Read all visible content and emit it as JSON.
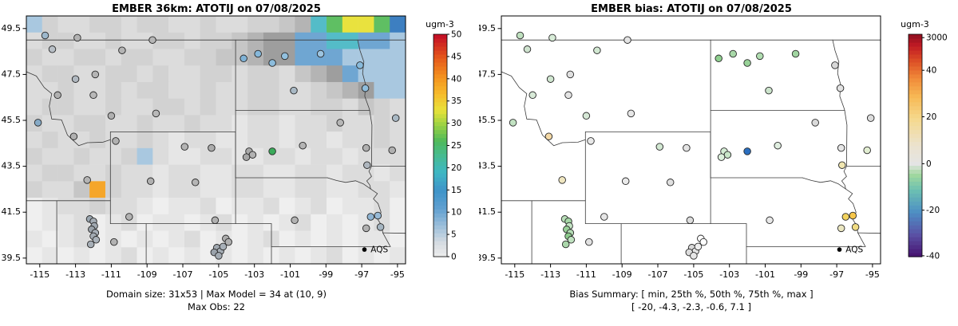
{
  "chart_data": [
    {
      "type": "heatmap",
      "title": "EMBER 36km: ATOTIJ on 07/08/2025",
      "caption1": "Domain size: 31x53 | Max Model = 34 at (10, 9)",
      "caption2": "Max Obs: 22",
      "legend_label": "AQS",
      "legend_position": "bottom-right-inside",
      "x_ticks": [
        -115,
        -113,
        -111,
        -109,
        -107,
        -105,
        -103,
        -101,
        -99,
        -97,
        -95
      ],
      "y_ticks": [
        39.5,
        41.5,
        43.5,
        45.5,
        47.5,
        49.5
      ],
      "lon_range": [
        -115.75,
        -94.55
      ],
      "lat_range": [
        39.25,
        50.05
      ],
      "grid": false,
      "stations_color_key": "c1",
      "colorbar": {
        "label": "ugm-3",
        "ticks": [
          0,
          5,
          10,
          15,
          20,
          25,
          30,
          35,
          40,
          45,
          50
        ],
        "tick_max": 50,
        "stops_bottom_to_top": [
          {
            "f": 0.0,
            "c": "#ededed"
          },
          {
            "f": 0.06,
            "c": "#d8dde2"
          },
          {
            "f": 0.13,
            "c": "#a3c3dc"
          },
          {
            "f": 0.22,
            "c": "#5f9fd0"
          },
          {
            "f": 0.3,
            "c": "#3f94c9"
          },
          {
            "f": 0.38,
            "c": "#3fb7c4"
          },
          {
            "f": 0.46,
            "c": "#47bb8e"
          },
          {
            "f": 0.52,
            "c": "#4eb95a"
          },
          {
            "f": 0.6,
            "c": "#a2d442"
          },
          {
            "f": 0.66,
            "c": "#e9e23a"
          },
          {
            "f": 0.73,
            "c": "#f6bd2c"
          },
          {
            "f": 0.81,
            "c": "#f3921f"
          },
          {
            "f": 0.9,
            "c": "#e4551b"
          },
          {
            "f": 1.0,
            "c": "#c20b26"
          }
        ]
      },
      "raster": {
        "palette": {
          ".": "#efefef",
          "a": "#e6e6e6",
          "b": "#dcdcdc",
          "c": "#d2d2d2",
          "d": "#c6c6c6",
          "e": "#b4b4b4",
          "f": "#9e9e9e",
          "B": "#a9c8e0",
          "C": "#6fa6d2",
          "D": "#3d7fc1",
          "T": "#54bcc8",
          "G": "#5fbf63",
          "Y": "#e9e23e",
          "O": "#f5a62a"
        },
        "rows": [
          "BcbbccbccbbcbbccdeTGYYGD",
          "bccbbcbbccbccdeffCCTTCCB",
          "cbbccbccbbccddeffCCCBBBB",
          "bccbbccbcbbccbccbdefCBBB",
          "bbcbbcbccbbcbbccbbcdefBB",
          "bccbbcbbccbcbbccbbccbdcb",
          "cbbccbbcbbcbbabbabbcbbcb",
          "bcbbcbbcbabbaabbabbabbcb",
          "cbbcbbcBbaabbaabbabbabbb",
          "bccbbcbbabbaabbaabbabbab",
          "cbbdOcbbabbaabbaabbaabba",
          ".abbcbba.aab.aab.ab.aab.",
          ".aab.ab.aa.ab.a.ab.a.ab.",
          "a.ab.a.a.ab.a.ab.a.a.aa.",
          ".a.a.ab.a.a.a.a.a.ab.a.a"
        ]
      }
    },
    {
      "type": "scatter",
      "title": "EMBER bias: ATOTIJ on 07/08/2025",
      "caption1": "Bias Summary: [ min, 25th %, 50th %, 75th %, max ]",
      "caption2": "[ -20,  -4.3,  -2.3,  -0.6,  7.1 ]",
      "legend_label": "AQS",
      "legend_position": "bottom-right-inside",
      "x_ticks": [
        -115,
        -113,
        -111,
        -109,
        -107,
        -105,
        -103,
        -101,
        -99,
        -97,
        -95
      ],
      "y_ticks": [
        39.5,
        41.5,
        43.5,
        45.5,
        47.5,
        49.5
      ],
      "lon_range": [
        -115.75,
        -94.55
      ],
      "lat_range": [
        39.25,
        50.05
      ],
      "grid": false,
      "stations_color_key": "c2",
      "colorbar": {
        "label": "ugm-3",
        "ticks": [
          {
            "label": "3000",
            "f": 0.985
          },
          {
            "label": "40",
            "f": 0.838
          },
          {
            "label": "20",
            "f": 0.629
          },
          {
            "label": "0",
            "f": 0.418
          },
          {
            "label": "-20",
            "f": 0.209
          },
          {
            "label": "-40",
            "f": 0.004
          }
        ],
        "stops_bottom_to_top": [
          {
            "f": 0.0,
            "c": "#46106e"
          },
          {
            "f": 0.1,
            "c": "#5a51a5"
          },
          {
            "f": 0.2,
            "c": "#4d8ec4"
          },
          {
            "f": 0.3,
            "c": "#6cc0b2"
          },
          {
            "f": 0.37,
            "c": "#a2d89e"
          },
          {
            "f": 0.42,
            "c": "#e4e4e4"
          },
          {
            "f": 0.5,
            "c": "#ebe3cf"
          },
          {
            "f": 0.62,
            "c": "#f5d98e"
          },
          {
            "f": 0.72,
            "c": "#f7b955"
          },
          {
            "f": 0.8,
            "c": "#f18c3a"
          },
          {
            "f": 0.88,
            "c": "#dd5026"
          },
          {
            "f": 0.95,
            "c": "#c01a24"
          },
          {
            "f": 1.0,
            "c": "#8f0f20"
          }
        ]
      }
    }
  ],
  "stations": [
    {
      "lon": -114.7,
      "lat": 49.2,
      "c1": "#9db8cc",
      "c2": "#bfe0bf"
    },
    {
      "lon": -112.9,
      "lat": 49.1,
      "c1": "#b2b2b2",
      "c2": "#d8ecd8"
    },
    {
      "lon": -108.7,
      "lat": 49.0,
      "c1": "#b6b6b6",
      "c2": "#e4e4e4"
    },
    {
      "lon": -114.3,
      "lat": 48.6,
      "c1": "#b8bfc6",
      "c2": "#cfe3cf"
    },
    {
      "lon": -110.4,
      "lat": 48.55,
      "c1": "#b4b4b4",
      "c2": "#d2e8d2"
    },
    {
      "lon": -113.0,
      "lat": 47.3,
      "c1": "#b0b8c0",
      "c2": "#d0e6d0"
    },
    {
      "lon": -111.9,
      "lat": 47.5,
      "c1": "#b5b5b5",
      "c2": "#e0e0e0"
    },
    {
      "lon": -114.0,
      "lat": 46.6,
      "c1": "#b0b0b0",
      "c2": "#d8ead8"
    },
    {
      "lon": -112.0,
      "lat": 46.6,
      "c1": "#b8b8b8",
      "c2": "#e4e4e4"
    },
    {
      "lon": -111.0,
      "lat": 45.7,
      "c1": "#b0b0b0",
      "c2": "#d6e8d6"
    },
    {
      "lon": -108.5,
      "lat": 45.8,
      "c1": "#b8b8b8",
      "c2": "#e6e6e6"
    },
    {
      "lon": -103.6,
      "lat": 48.2,
      "c1": "#7fb2d6",
      "c2": "#8fcf8f"
    },
    {
      "lon": -102.8,
      "lat": 48.4,
      "c1": "#86b8da",
      "c2": "#a8d8a8"
    },
    {
      "lon": -102.0,
      "lat": 48.0,
      "c1": "#8cbcdc",
      "c2": "#98d298"
    },
    {
      "lon": -101.3,
      "lat": 48.3,
      "c1": "#92c0de",
      "c2": "#b0dcb0"
    },
    {
      "lon": -99.3,
      "lat": 48.4,
      "c1": "#9cc4e0",
      "c2": "#a0d4a0"
    },
    {
      "lon": -100.8,
      "lat": 46.8,
      "c1": "#a8b8c4",
      "c2": "#cce4cc"
    },
    {
      "lon": -97.1,
      "lat": 47.9,
      "c1": "#88badb",
      "c2": "#d8d8d8"
    },
    {
      "lon": -96.8,
      "lat": 46.9,
      "c1": "#90bedd",
      "c2": "#e2e2e2"
    },
    {
      "lon": -98.2,
      "lat": 45.4,
      "c1": "#b6b6b6",
      "c2": "#dadada"
    },
    {
      "lon": -103.3,
      "lat": 44.15,
      "c1": "#aaaaaa",
      "c2": "#d4ecd4"
    },
    {
      "lon": -103.1,
      "lat": 44.0,
      "c1": "#b2b2b2",
      "c2": "#c8e6c8"
    },
    {
      "lon": -103.45,
      "lat": 43.9,
      "c1": "#a6a6a6",
      "c2": "#dcf0dc"
    },
    {
      "lon": -102.0,
      "lat": 44.15,
      "c1": "#3aaa5a",
      "c2": "#2b6fc0"
    },
    {
      "lon": -100.3,
      "lat": 44.4,
      "c1": "#b4b4b4",
      "c2": "#e0eee0"
    },
    {
      "lon": -96.75,
      "lat": 44.3,
      "c1": "#b0b0b0",
      "c2": "#e6e6e6"
    },
    {
      "lon": -96.7,
      "lat": 43.55,
      "c1": "#aeb6be",
      "c2": "#f0e6b0"
    },
    {
      "lon": -95.3,
      "lat": 44.2,
      "c1": "#b0b0b0",
      "c2": "#e2eed2"
    },
    {
      "lon": -95.1,
      "lat": 45.6,
      "c1": "#a8b8c4",
      "c2": "#dcdcdc"
    },
    {
      "lon": -110.75,
      "lat": 44.6,
      "c1": "#b0b0b0",
      "c2": "#e8e8e8"
    },
    {
      "lon": -106.9,
      "lat": 44.35,
      "c1": "#b4b4b4",
      "c2": "#d2e8d2"
    },
    {
      "lon": -105.4,
      "lat": 44.3,
      "c1": "#acacac",
      "c2": "#e4e4e4"
    },
    {
      "lon": -108.8,
      "lat": 42.85,
      "c1": "#b0b0b0",
      "c2": "#eaeaea"
    },
    {
      "lon": -106.3,
      "lat": 42.8,
      "c1": "#b6b6b6",
      "c2": "#e0e0e0"
    },
    {
      "lon": -110.0,
      "lat": 41.3,
      "c1": "#b2b2b2",
      "c2": "#e6e6e6"
    },
    {
      "lon": -105.2,
      "lat": 41.15,
      "c1": "#b0b0b0",
      "c2": "#dcdcdc"
    },
    {
      "lon": -115.1,
      "lat": 45.4,
      "c1": "#86aac6",
      "c2": "#c2e2c2"
    },
    {
      "lon": -113.1,
      "lat": 44.8,
      "c1": "#b0b0b0",
      "c2": "#f4d9a6"
    },
    {
      "lon": -112.35,
      "lat": 42.9,
      "c1": "#b4b4b4",
      "c2": "#efe6c0"
    },
    {
      "lon": -112.2,
      "lat": 41.2,
      "c1": "#9aa6b0",
      "c2": "#b8dfb8"
    },
    {
      "lon": -112.0,
      "lat": 41.1,
      "c1": "#a4acb4",
      "c2": "#a6d8a6"
    },
    {
      "lon": -111.95,
      "lat": 40.9,
      "c1": "#a0a8b0",
      "c2": "#c4e4c4"
    },
    {
      "lon": -112.1,
      "lat": 40.75,
      "c1": "#9aa2aa",
      "c2": "#98d098"
    },
    {
      "lon": -111.9,
      "lat": 40.6,
      "c1": "#a8b0b8",
      "c2": "#b4dcb4"
    },
    {
      "lon": -112.0,
      "lat": 40.45,
      "c1": "#a2aab2",
      "c2": "#8cca8c"
    },
    {
      "lon": -111.85,
      "lat": 40.3,
      "c1": "#aab2ba",
      "c2": "#c0e2c0"
    },
    {
      "lon": -112.15,
      "lat": 40.1,
      "c1": "#a6aeb6",
      "c2": "#aad6aa"
    },
    {
      "lon": -110.85,
      "lat": 40.2,
      "c1": "#b2b2b2",
      "c2": "#e2e2e2"
    },
    {
      "lon": -105.1,
      "lat": 39.95,
      "c1": "#9fa7af",
      "c2": "#d9d9d9"
    },
    {
      "lon": -104.9,
      "lat": 39.8,
      "c1": "#a5adb5",
      "c2": "#e4e4e4"
    },
    {
      "lon": -105.25,
      "lat": 39.75,
      "c1": "#9aa2aa",
      "c2": "#dcdcdc"
    },
    {
      "lon": -104.75,
      "lat": 40.0,
      "c1": "#a8b0b8",
      "c2": "#eeeeee"
    },
    {
      "lon": -105.0,
      "lat": 39.6,
      "c1": "#a2aab2",
      "c2": "#e6e6e6"
    },
    {
      "lon": -104.6,
      "lat": 40.35,
      "c1": "#acacac",
      "c2": "#ffffff"
    },
    {
      "lon": -104.45,
      "lat": 40.2,
      "c1": "#b0b0b0",
      "c2": "#ffffff"
    },
    {
      "lon": -100.75,
      "lat": 41.15,
      "c1": "#b2b2b2",
      "c2": "#e8e8e8"
    },
    {
      "lon": -96.5,
      "lat": 41.3,
      "c1": "#8fb4d2",
      "c2": "#f2d35e"
    },
    {
      "lon": -96.1,
      "lat": 41.35,
      "c1": "#98bad6",
      "c2": "#f6c64a"
    },
    {
      "lon": -95.95,
      "lat": 40.85,
      "c1": "#a4b4c0",
      "c2": "#f0dc82"
    },
    {
      "lon": -96.75,
      "lat": 40.8,
      "c1": "#b0b0b0",
      "c2": "#eae6c0"
    }
  ],
  "map_borders": [
    [
      [
        -115.75,
        49
      ],
      [
        -94.55,
        49
      ]
    ],
    [
      [
        -115.75,
        47.62
      ],
      [
        -115.19,
        47.43
      ],
      [
        -114.75,
        46.93
      ],
      [
        -114.33,
        46.66
      ],
      [
        -114.47,
        46.12
      ],
      [
        -114.33,
        45.56
      ],
      [
        -113.78,
        45.52
      ],
      [
        -113.45,
        44.86
      ],
      [
        -112.82,
        44.4
      ],
      [
        -112.34,
        44.53
      ],
      [
        -111.47,
        44.55
      ],
      [
        -111.05,
        44.66
      ]
    ],
    [
      [
        -111.05,
        45.0
      ],
      [
        -111.05,
        41.0
      ]
    ],
    [
      [
        -111.05,
        45.0
      ],
      [
        -104.05,
        45.0
      ]
    ],
    [
      [
        -104.05,
        49.0
      ],
      [
        -104.05,
        43.0
      ]
    ],
    [
      [
        -104.05,
        45.0
      ],
      [
        -104.05,
        41.0
      ]
    ],
    [
      [
        -111.05,
        41.0
      ],
      [
        -102.05,
        41.0
      ]
    ],
    [
      [
        -104.05,
        43.0
      ],
      [
        -98.92,
        43.0
      ]
    ],
    [
      [
        -98.92,
        43.0
      ],
      [
        -98.4,
        42.88
      ],
      [
        -97.9,
        42.8
      ],
      [
        -97.35,
        42.87
      ],
      [
        -96.9,
        42.73
      ],
      [
        -96.5,
        42.51
      ]
    ],
    [
      [
        -104.05,
        45.94
      ],
      [
        -96.56,
        45.94
      ]
    ],
    [
      [
        -97.23,
        49.0
      ],
      [
        -97.1,
        48.55
      ],
      [
        -96.88,
        48.05
      ],
      [
        -96.95,
        47.55
      ],
      [
        -96.78,
        47.05
      ],
      [
        -96.83,
        46.55
      ],
      [
        -96.6,
        46.05
      ],
      [
        -96.56,
        45.94
      ]
    ],
    [
      [
        -96.56,
        45.94
      ],
      [
        -96.43,
        45.3
      ],
      [
        -96.45,
        43.5
      ]
    ],
    [
      [
        -96.45,
        43.5
      ],
      [
        -94.55,
        43.5
      ]
    ],
    [
      [
        -96.45,
        43.5
      ],
      [
        -96.6,
        43.28
      ],
      [
        -96.45,
        43.06
      ],
      [
        -96.72,
        42.86
      ],
      [
        -96.55,
        42.68
      ],
      [
        -96.5,
        42.51
      ]
    ],
    [
      [
        -96.5,
        42.51
      ],
      [
        -96.12,
        42.31
      ],
      [
        -96.35,
        42.08
      ],
      [
        -96.09,
        41.88
      ],
      [
        -95.92,
        41.5
      ],
      [
        -96.1,
        41.18
      ],
      [
        -95.87,
        40.9
      ],
      [
        -95.82,
        40.6
      ]
    ],
    [
      [
        -95.82,
        40.6
      ],
      [
        -94.55,
        40.58
      ]
    ],
    [
      [
        -95.82,
        40.6
      ],
      [
        -95.4,
        40.0
      ]
    ],
    [
      [
        -102.05,
        40.0
      ],
      [
        -95.4,
        40.0
      ]
    ],
    [
      [
        -102.05,
        41.0
      ],
      [
        -102.05,
        39.25
      ]
    ],
    [
      [
        -109.05,
        41.0
      ],
      [
        -109.05,
        39.25
      ]
    ],
    [
      [
        -114.05,
        42.0
      ],
      [
        -114.05,
        39.25
      ]
    ],
    [
      [
        -115.75,
        42.0
      ],
      [
        -111.05,
        42.0
      ]
    ]
  ]
}
